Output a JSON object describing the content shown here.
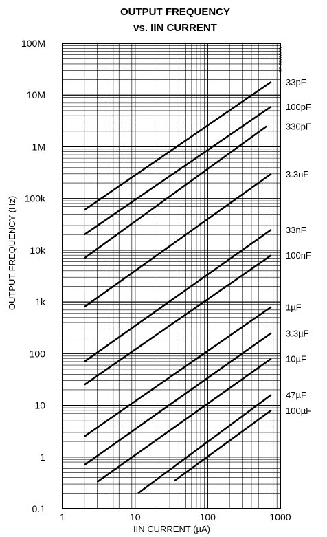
{
  "chart_data": {
    "type": "line",
    "title_line1": "OUTPUT FREQUENCY",
    "title_line2": "vs. IIN CURRENT",
    "xlabel": "IIN CURRENT (µA)",
    "ylabel": "OUTPUT FREQUENCY (Hz)",
    "x_scale": "log",
    "y_scale": "log",
    "xlim": [
      1,
      1000
    ],
    "ylim": [
      0.1,
      100000000
    ],
    "x_ticks": [
      {
        "value": 1,
        "label": "1"
      },
      {
        "value": 10,
        "label": "10"
      },
      {
        "value": 100,
        "label": "100"
      },
      {
        "value": 1000,
        "label": "1000"
      }
    ],
    "y_ticks": [
      {
        "value": 100000000,
        "label": "100M"
      },
      {
        "value": 10000000,
        "label": "10M"
      },
      {
        "value": 1000000,
        "label": "1M"
      },
      {
        "value": 100000,
        "label": "100k"
      },
      {
        "value": 10000,
        "label": "10k"
      },
      {
        "value": 1000,
        "label": "1k"
      },
      {
        "value": 100,
        "label": "100"
      },
      {
        "value": 10,
        "label": "10"
      },
      {
        "value": 1,
        "label": "1"
      },
      {
        "value": 0.1,
        "label": "0.1"
      }
    ],
    "grid": true,
    "annotation": "MAX038-08",
    "series": [
      {
        "name": "33pF",
        "x": [
          2,
          750
        ],
        "y": [
          60000,
          18000000
        ]
      },
      {
        "name": "100pF",
        "x": [
          2,
          750
        ],
        "y": [
          20000,
          6000000
        ]
      },
      {
        "name": "330pF",
        "x": [
          2,
          650
        ],
        "y": [
          7000,
          2500000
        ]
      },
      {
        "name": "3.3nF",
        "x": [
          2,
          750
        ],
        "y": [
          800,
          300000
        ]
      },
      {
        "name": "33nF",
        "x": [
          2,
          750
        ],
        "y": [
          70,
          25000
        ]
      },
      {
        "name": "100nF",
        "x": [
          2,
          750
        ],
        "y": [
          25,
          8000
        ]
      },
      {
        "name": "1µF",
        "x": [
          2,
          750
        ],
        "y": [
          2.5,
          800
        ]
      },
      {
        "name": "3.3µF",
        "x": [
          2,
          750
        ],
        "y": [
          0.7,
          250
        ]
      },
      {
        "name": "10µF",
        "x": [
          3,
          750
        ],
        "y": [
          0.33,
          80
        ]
      },
      {
        "name": "47µF",
        "x": [
          11,
          750
        ],
        "y": [
          0.2,
          16
        ]
      },
      {
        "name": "100µF",
        "x": [
          35,
          750
        ],
        "y": [
          0.35,
          8
        ]
      }
    ]
  }
}
